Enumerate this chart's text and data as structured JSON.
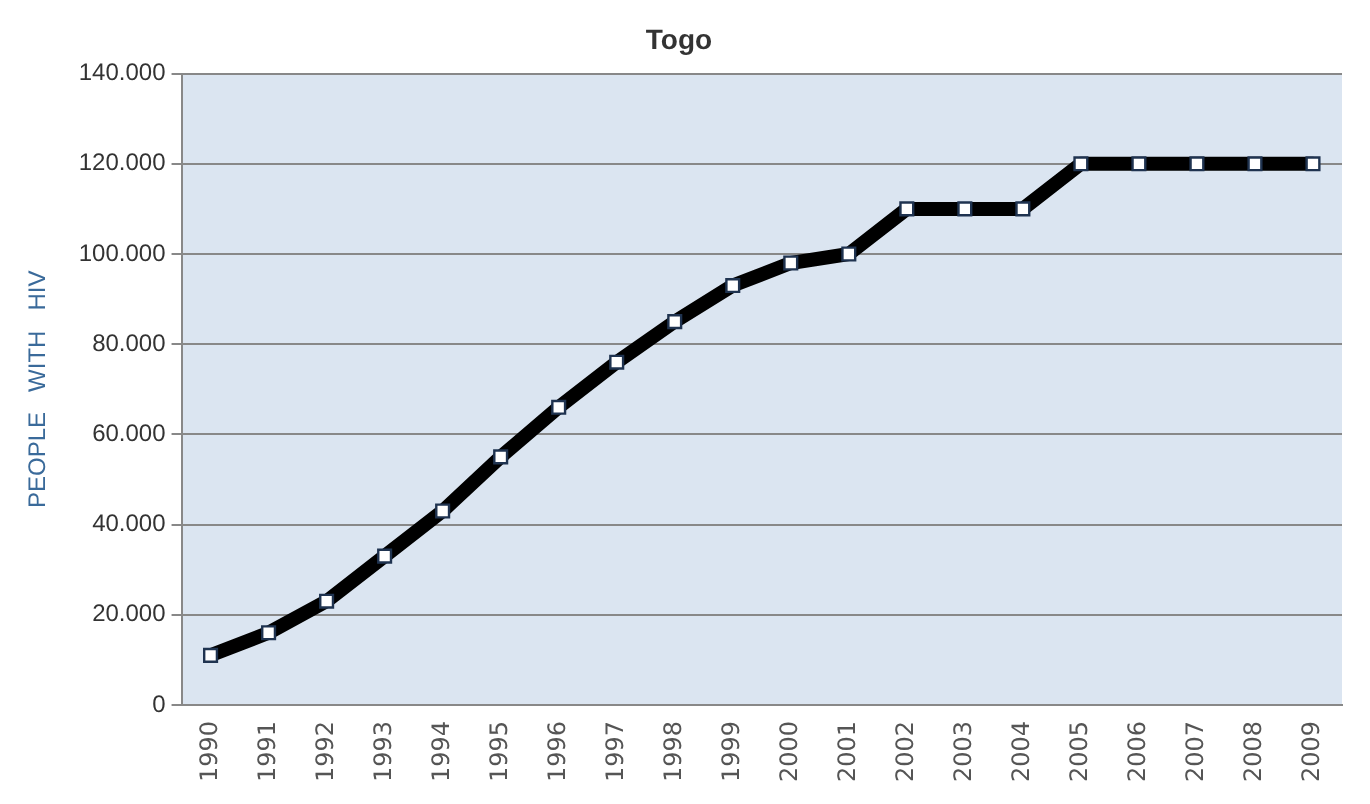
{
  "chart_data": {
    "type": "line",
    "title": "Togo",
    "ylabel": "PEOPLE   WITH   HIV",
    "categories": [
      "1990",
      "1991",
      "1992",
      "1993",
      "1994",
      "1995",
      "1996",
      "1997",
      "1998",
      "1999",
      "2000",
      "2001",
      "2002",
      "2003",
      "2004",
      "2005",
      "2006",
      "2007",
      "2008",
      "2009"
    ],
    "series": [
      {
        "color": "#000000",
        "values": [
          11000,
          16000,
          23000,
          33000,
          43000,
          55000,
          66000,
          76000,
          85000,
          93000,
          98000,
          100000,
          110000,
          110000,
          110000,
          120000,
          120000,
          120000,
          120000,
          120000
        ]
      }
    ],
    "ylim": [
      0,
      140000
    ],
    "yticks": [
      0,
      {
        "value": 20000,
        "label": "20.000"
      },
      {
        "value": 40000,
        "label": "40.000"
      },
      {
        "value": 60000,
        "label": "60.000"
      },
      {
        "value": 80000,
        "label": "80.000"
      },
      {
        "value": 100000,
        "label": "100.000"
      },
      {
        "value": 120000,
        "label": "120.000"
      },
      {
        "value": 140000,
        "label": "140.000"
      }
    ],
    "grid": "y",
    "legend": false,
    "marker": "square",
    "line_style": "solid"
  }
}
